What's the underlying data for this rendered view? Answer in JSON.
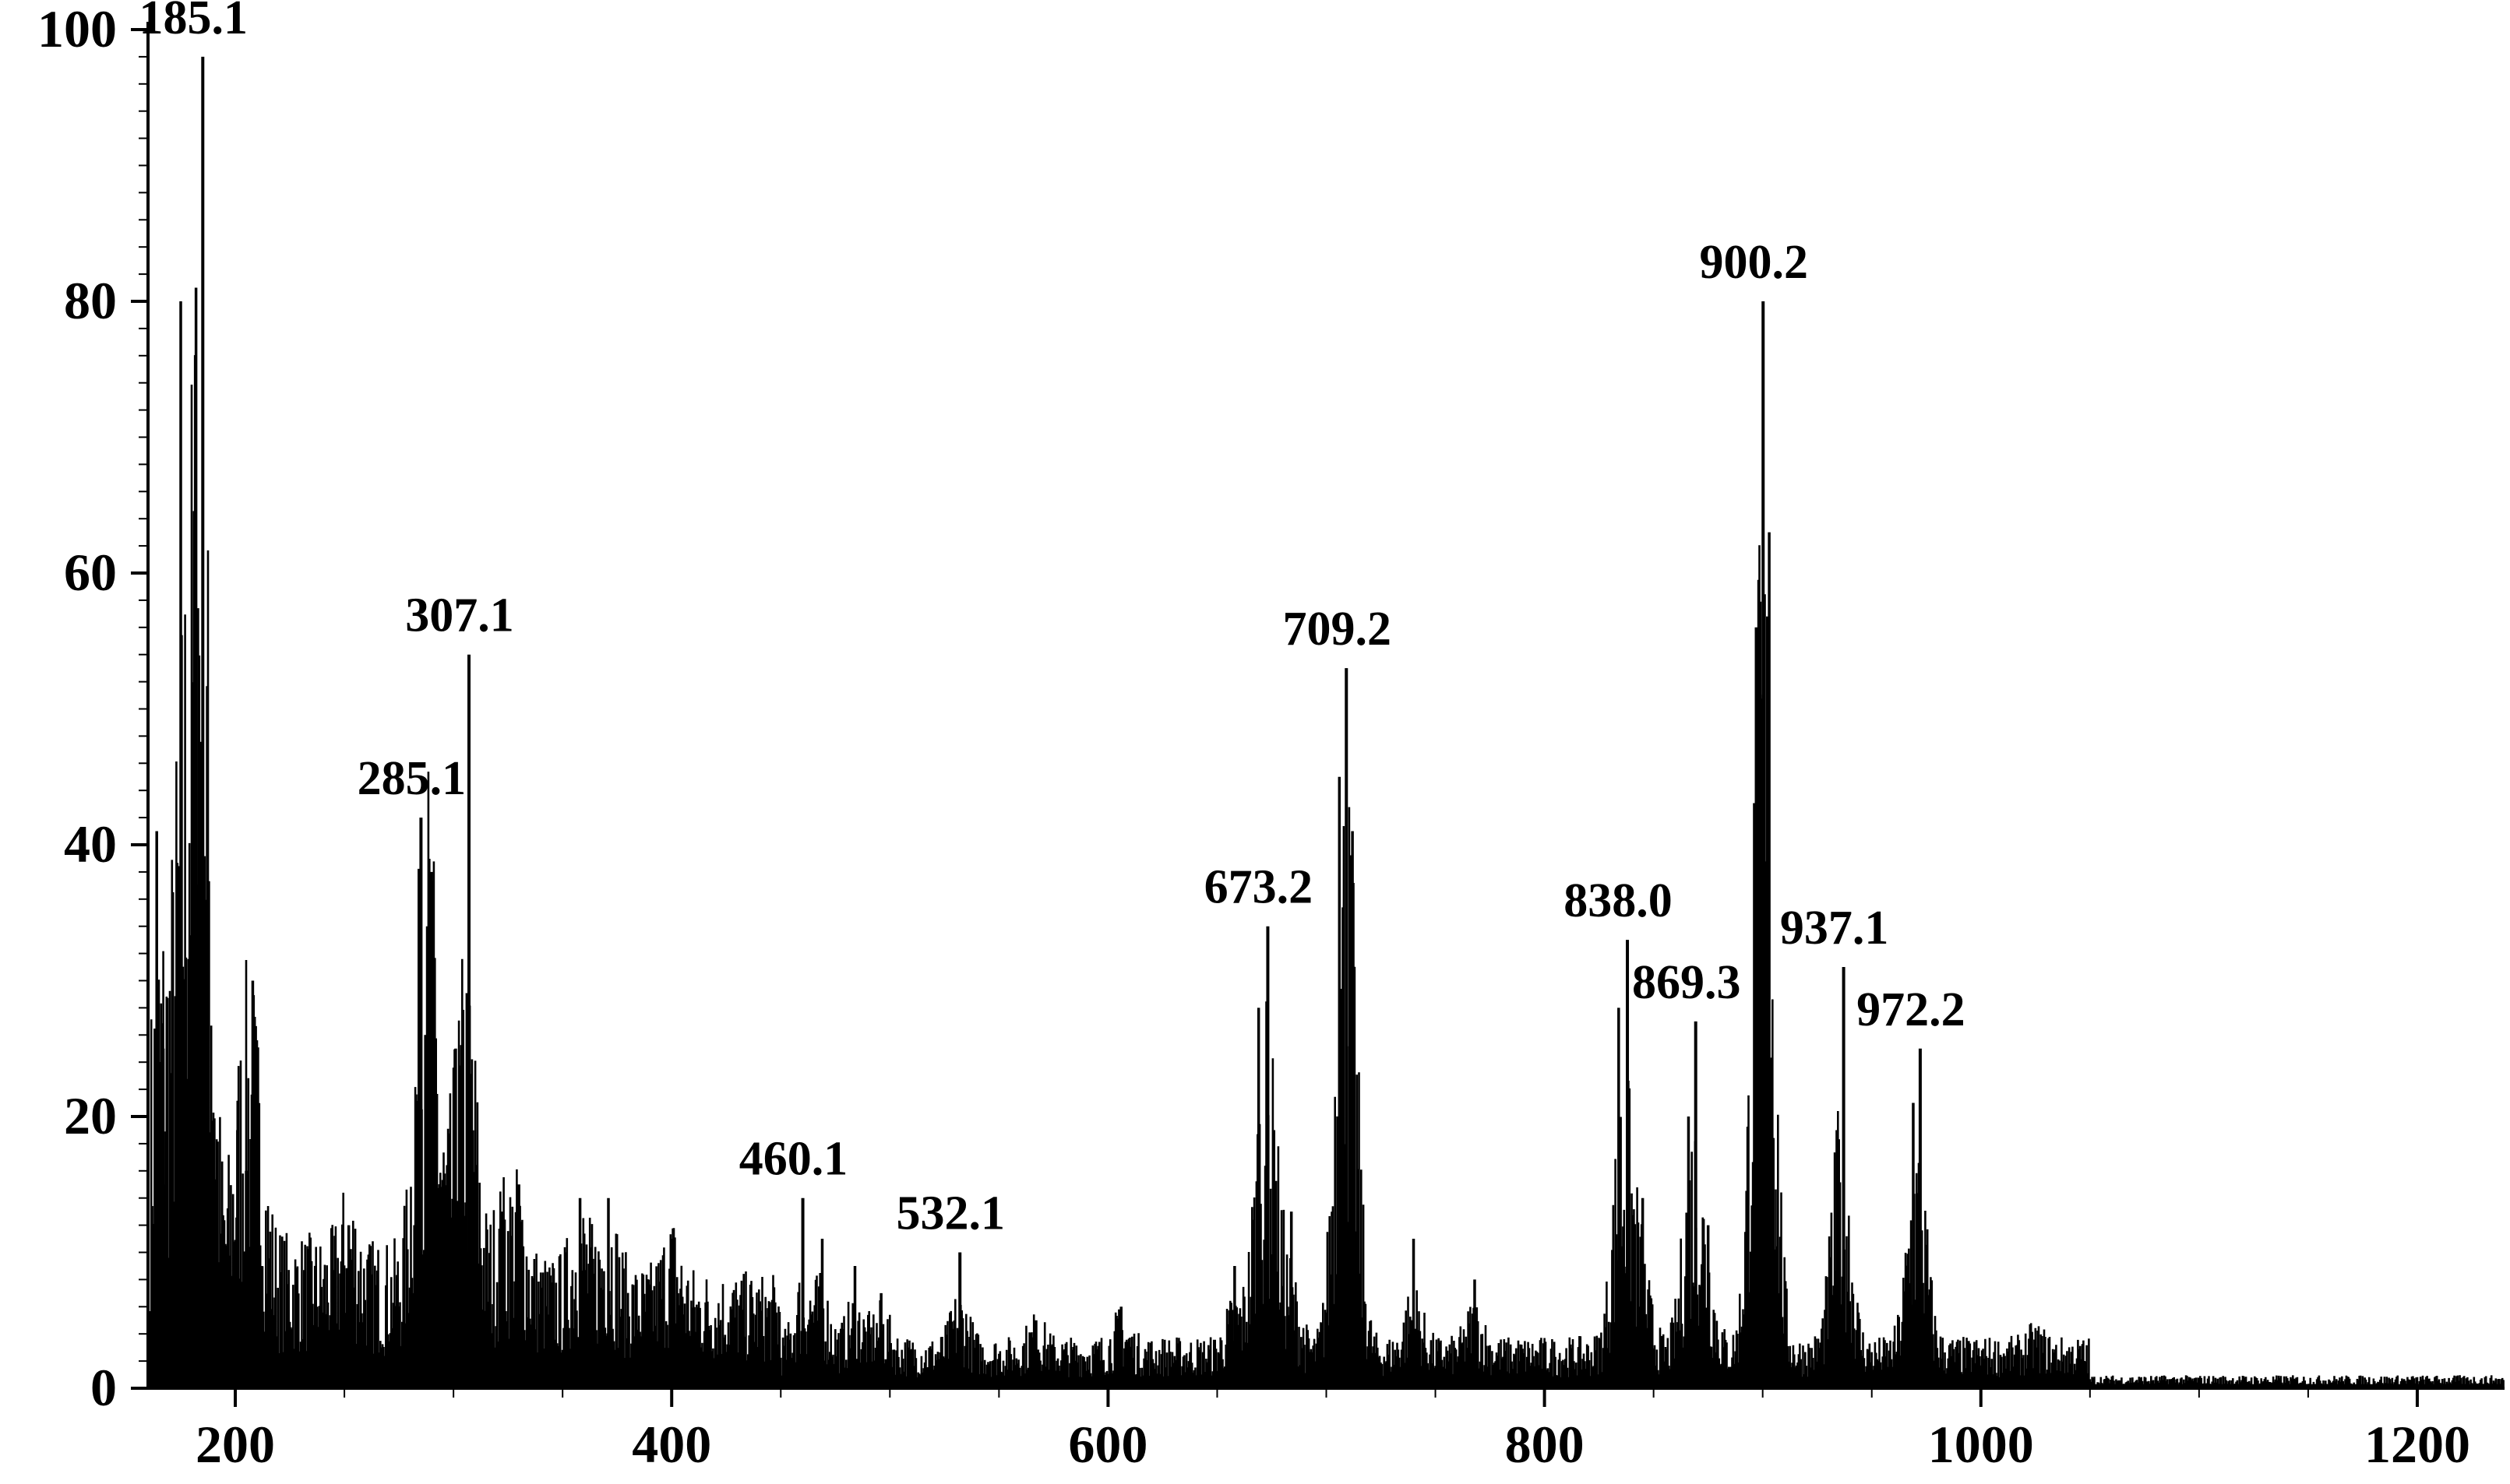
{
  "chart_data": {
    "type": "bar",
    "xlabel": "",
    "ylabel": "",
    "xlim": [
      160,
      1240
    ],
    "ylim": [
      0,
      100
    ],
    "x_ticks": [
      200,
      400,
      600,
      800,
      1000,
      1200
    ],
    "y_ticks": [
      0,
      20,
      40,
      60,
      80,
      100
    ],
    "grid": false,
    "legend": "none",
    "color": "#000000",
    "peaks": [
      {
        "x": 164,
        "y": 41
      },
      {
        "x": 167,
        "y": 25
      },
      {
        "x": 175,
        "y": 80
      },
      {
        "x": 178,
        "y": 20
      },
      {
        "x": 182,
        "y": 81
      },
      {
        "x": 185.1,
        "y": 98,
        "label": "185.1"
      },
      {
        "x": 187,
        "y": 27
      },
      {
        "x": 201,
        "y": 19
      },
      {
        "x": 205,
        "y": 16
      },
      {
        "x": 208,
        "y": 30
      },
      {
        "x": 212,
        "y": 9
      },
      {
        "x": 252,
        "y": 12
      },
      {
        "x": 285.1,
        "y": 42,
        "label": "285.1"
      },
      {
        "x": 288,
        "y": 34
      },
      {
        "x": 290,
        "y": 38
      },
      {
        "x": 301,
        "y": 25
      },
      {
        "x": 307.1,
        "y": 54,
        "label": "307.1"
      },
      {
        "x": 322,
        "y": 13
      },
      {
        "x": 330,
        "y": 15
      },
      {
        "x": 358,
        "y": 14
      },
      {
        "x": 371,
        "y": 14
      },
      {
        "x": 400,
        "y": 11
      },
      {
        "x": 460.1,
        "y": 14,
        "label": "460.1"
      },
      {
        "x": 469,
        "y": 11
      },
      {
        "x": 484,
        "y": 9
      },
      {
        "x": 496,
        "y": 7
      },
      {
        "x": 532.1,
        "y": 10,
        "label": "532.1"
      },
      {
        "x": 567,
        "y": 5
      },
      {
        "x": 606,
        "y": 6
      },
      {
        "x": 658,
        "y": 9
      },
      {
        "x": 669,
        "y": 28
      },
      {
        "x": 673.2,
        "y": 34,
        "label": "673.2"
      },
      {
        "x": 676,
        "y": 19
      },
      {
        "x": 684,
        "y": 13
      },
      {
        "x": 706,
        "y": 45
      },
      {
        "x": 709.2,
        "y": 53,
        "label": "709.2"
      },
      {
        "x": 712,
        "y": 41
      },
      {
        "x": 740,
        "y": 11
      },
      {
        "x": 768,
        "y": 8
      },
      {
        "x": 834,
        "y": 28
      },
      {
        "x": 838.0,
        "y": 33,
        "label": "838.0"
      },
      {
        "x": 845,
        "y": 14
      },
      {
        "x": 866,
        "y": 20
      },
      {
        "x": 869.3,
        "y": 27,
        "label": "869.3"
      },
      {
        "x": 875,
        "y": 12
      },
      {
        "x": 897,
        "y": 56
      },
      {
        "x": 900.2,
        "y": 80,
        "label": "900.2"
      },
      {
        "x": 903,
        "y": 63
      },
      {
        "x": 934,
        "y": 19
      },
      {
        "x": 937.1,
        "y": 31,
        "label": "937.1"
      },
      {
        "x": 969,
        "y": 21
      },
      {
        "x": 972.2,
        "y": 25,
        "label": "972.2"
      },
      {
        "x": 1025,
        "y": 3
      }
    ]
  }
}
